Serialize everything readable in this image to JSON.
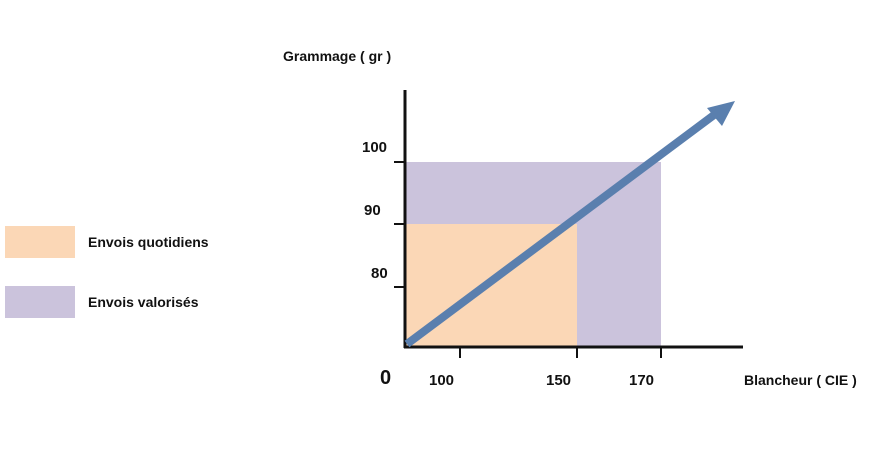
{
  "y_axis_label": "Grammage ( gr )",
  "x_axis_label": "Blancheur ( CIE )",
  "origin_label": "0",
  "y_ticks": [
    "100",
    "90",
    "80"
  ],
  "x_ticks": [
    "100",
    "150",
    "170"
  ],
  "legend": [
    {
      "label": "Envois quotidiens",
      "color": "#fbd7b6"
    },
    {
      "label": "Envois valorisés",
      "color": "#cbc3dc"
    }
  ],
  "regions": [
    {
      "name": "Envois quotidiens",
      "x_max": 150,
      "y_max": 90,
      "color": "#fbd7b6"
    },
    {
      "name": "Envois valorisés",
      "x_max": 170,
      "y_max": 100,
      "color": "#cbc3dc"
    }
  ],
  "arrow_color": "#5a7fae",
  "axis_color": "#111111"
}
